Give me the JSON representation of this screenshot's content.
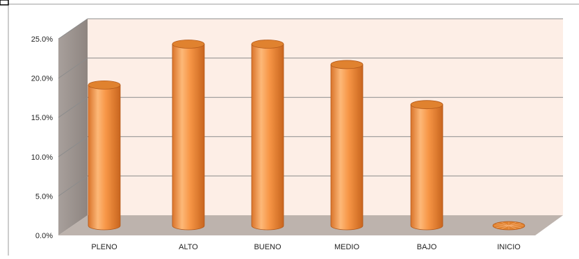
{
  "chart_data": {
    "type": "bar",
    "style": "3d-cylinder",
    "title": "",
    "xlabel": "",
    "ylabel": "",
    "categories": [
      "PLENO",
      "ALTO",
      "BUENO",
      "MEDIO",
      "BAJO",
      "INICIO"
    ],
    "values": [
      17.9,
      23.1,
      23.1,
      20.5,
      15.4,
      0.0
    ],
    "y_ticks": [
      "0.0%",
      "5.0%",
      "10.0%",
      "15.0%",
      "20.0%",
      "25.0%"
    ],
    "ylim": [
      0,
      25
    ],
    "grid": true,
    "legend": "none",
    "colors": {
      "bar_light": "#FDB878",
      "bar_mid": "#F79646",
      "bar_dark": "#C8651E",
      "back_wall": "#FDEEE6",
      "side_wall": "#9E9490",
      "floor": "#BDB3AD",
      "gridline": "#8C8C8C"
    }
  }
}
